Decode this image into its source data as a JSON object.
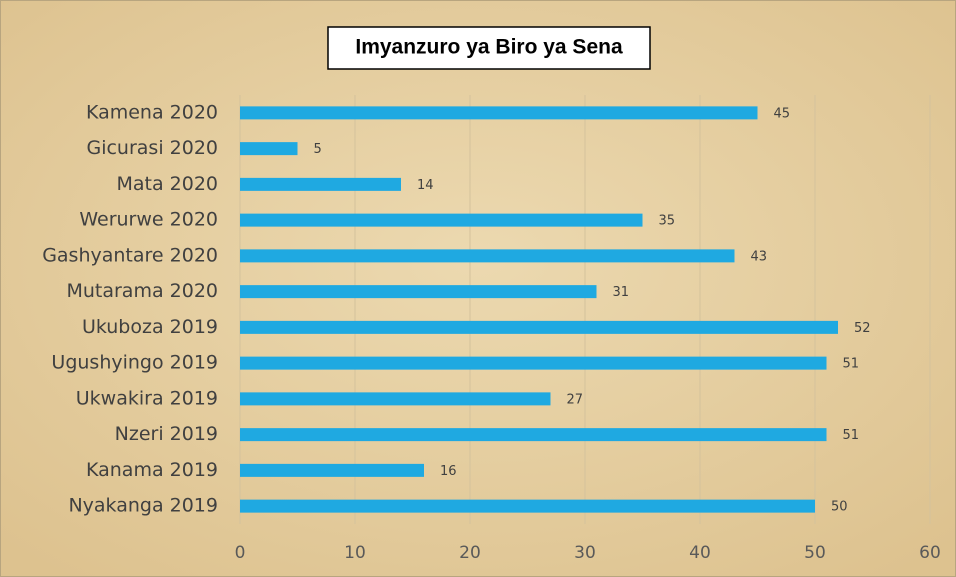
{
  "chart_data": {
    "type": "bar",
    "orientation": "horizontal",
    "title": "Imyanzuro ya Biro ya Sena",
    "categories": [
      "Kamena 2020",
      "Gicurasi 2020",
      "Mata 2020",
      "Werurwe 2020",
      "Gashyantare 2020",
      "Mutarama 2020",
      "Ukuboza 2019",
      "Ugushyingo 2019",
      "Ukwakira 2019",
      "Nzeri 2019",
      "Kanama 2019",
      "Nyakanga 2019"
    ],
    "values": [
      45,
      5,
      14,
      35,
      43,
      31,
      52,
      51,
      27,
      51,
      16,
      50
    ],
    "color": "#1fa9e1",
    "xlim": [
      0,
      60
    ],
    "xticks": [
      0,
      10,
      20,
      30,
      40,
      50,
      60
    ],
    "grid": true
  }
}
